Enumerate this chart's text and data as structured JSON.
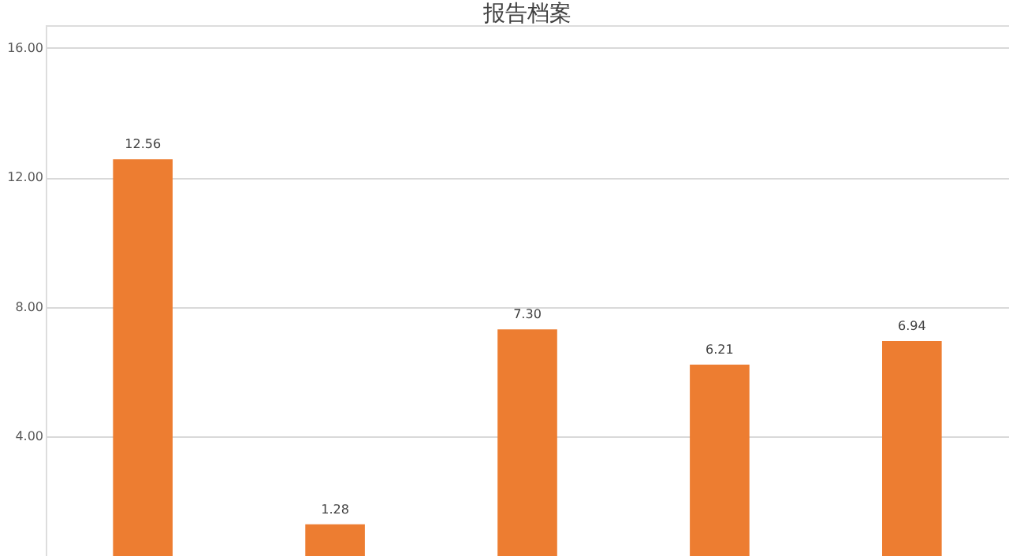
{
  "chart_data": {
    "type": "bar",
    "title": "报告档案",
    "categories": [
      null,
      null,
      null,
      null,
      null
    ],
    "values": [
      12.56,
      1.28,
      7.3,
      6.21,
      6.94
    ],
    "color": "#ed7d31",
    "value_labels": [
      "12.56",
      "1.28",
      "7.30",
      "6.21",
      "6.94"
    ],
    "ylim": [
      0.3,
      16.7
    ],
    "yticks": [
      {
        "value": 4,
        "label": "4.00"
      },
      {
        "value": 8,
        "label": "8.00"
      },
      {
        "value": 12,
        "label": "12.00"
      },
      {
        "value": 16,
        "label": "16.00"
      }
    ],
    "grid": "y"
  }
}
